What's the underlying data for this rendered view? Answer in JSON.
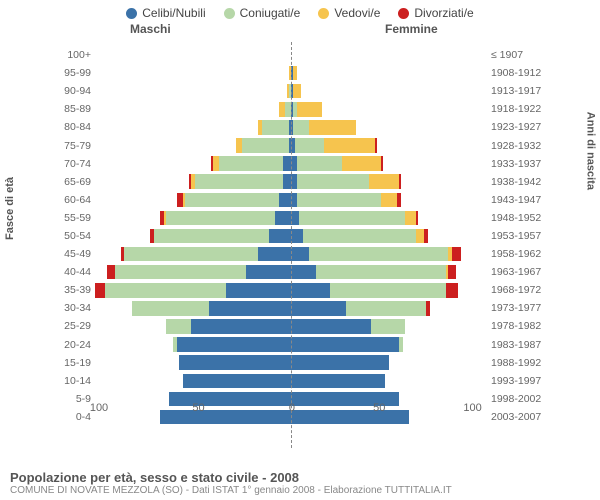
{
  "chart": {
    "type": "population-pyramid-stacked",
    "legend": [
      {
        "label": "Celibi/Nubili",
        "color": "#3b72a8"
      },
      {
        "label": "Coniugati/e",
        "color": "#b6d7a8"
      },
      {
        "label": "Vedovi/e",
        "color": "#f6c44e"
      },
      {
        "label": "Divorziati/e",
        "color": "#cc1f1f"
      }
    ],
    "header_left": "Maschi",
    "header_right": "Femmine",
    "y_left_title": "Fasce di età",
    "y_right_title": "Anni di nascita",
    "x_ticks": [
      "100",
      "50",
      "0",
      "50",
      "100"
    ],
    "x_max": 100,
    "background": "#ffffff",
    "bar_gap_pct": 20,
    "rows": [
      {
        "age": "100+",
        "birth": "≤ 1907",
        "m": [
          0,
          0,
          0,
          0
        ],
        "f": [
          0,
          0,
          0,
          0
        ]
      },
      {
        "age": "95-99",
        "birth": "1908-1912",
        "m": [
          0,
          0,
          1,
          0
        ],
        "f": [
          1,
          0,
          2,
          0
        ]
      },
      {
        "age": "90-94",
        "birth": "1913-1917",
        "m": [
          0,
          1,
          1,
          0
        ],
        "f": [
          1,
          0,
          4,
          0
        ]
      },
      {
        "age": "85-89",
        "birth": "1918-1922",
        "m": [
          0,
          3,
          3,
          0
        ],
        "f": [
          1,
          2,
          13,
          0
        ]
      },
      {
        "age": "80-84",
        "birth": "1923-1927",
        "m": [
          1,
          14,
          2,
          0
        ],
        "f": [
          1,
          8,
          24,
          0
        ]
      },
      {
        "age": "75-79",
        "birth": "1928-1932",
        "m": [
          1,
          24,
          3,
          0
        ],
        "f": [
          2,
          15,
          26,
          1
        ]
      },
      {
        "age": "70-74",
        "birth": "1933-1937",
        "m": [
          4,
          33,
          3,
          1
        ],
        "f": [
          3,
          23,
          20,
          1
        ]
      },
      {
        "age": "65-69",
        "birth": "1938-1942",
        "m": [
          4,
          45,
          2,
          1
        ],
        "f": [
          3,
          37,
          15,
          1
        ]
      },
      {
        "age": "60-64",
        "birth": "1943-1947",
        "m": [
          6,
          48,
          1,
          3
        ],
        "f": [
          3,
          43,
          8,
          2
        ]
      },
      {
        "age": "55-59",
        "birth": "1948-1952",
        "m": [
          8,
          56,
          1,
          2
        ],
        "f": [
          4,
          54,
          6,
          1
        ]
      },
      {
        "age": "50-54",
        "birth": "1953-1957",
        "m": [
          11,
          59,
          0,
          2
        ],
        "f": [
          6,
          58,
          4,
          2
        ]
      },
      {
        "age": "45-49",
        "birth": "1958-1962",
        "m": [
          17,
          68,
          0,
          2
        ],
        "f": [
          9,
          71,
          2,
          5
        ]
      },
      {
        "age": "40-44",
        "birth": "1963-1967",
        "m": [
          23,
          67,
          0,
          4
        ],
        "f": [
          13,
          66,
          1,
          4
        ]
      },
      {
        "age": "35-39",
        "birth": "1968-1972",
        "m": [
          34,
          63,
          0,
          5
        ],
        "f": [
          20,
          59,
          0,
          6
        ]
      },
      {
        "age": "30-34",
        "birth": "1973-1977",
        "m": [
          42,
          39,
          0,
          0
        ],
        "f": [
          28,
          41,
          0,
          2
        ]
      },
      {
        "age": "25-29",
        "birth": "1978-1982",
        "m": [
          51,
          13,
          0,
          0
        ],
        "f": [
          41,
          17,
          0,
          0
        ]
      },
      {
        "age": "20-24",
        "birth": "1983-1987",
        "m": [
          58,
          2,
          0,
          0
        ],
        "f": [
          55,
          2,
          0,
          0
        ]
      },
      {
        "age": "15-19",
        "birth": "1988-1992",
        "m": [
          57,
          0,
          0,
          0
        ],
        "f": [
          50,
          0,
          0,
          0
        ]
      },
      {
        "age": "10-14",
        "birth": "1993-1997",
        "m": [
          55,
          0,
          0,
          0
        ],
        "f": [
          48,
          0,
          0,
          0
        ]
      },
      {
        "age": "5-9",
        "birth": "1998-2002",
        "m": [
          62,
          0,
          0,
          0
        ],
        "f": [
          55,
          0,
          0,
          0
        ]
      },
      {
        "age": "0-4",
        "birth": "2003-2007",
        "m": [
          67,
          0,
          0,
          0
        ],
        "f": [
          60,
          0,
          0,
          0
        ]
      }
    ],
    "footer_title": "Popolazione per età, sesso e stato civile - 2008",
    "footer_sub": "COMUNE DI NOVATE MEZZOLA (SO) - Dati ISTAT 1° gennaio 2008 - Elaborazione TUTTITALIA.IT"
  }
}
